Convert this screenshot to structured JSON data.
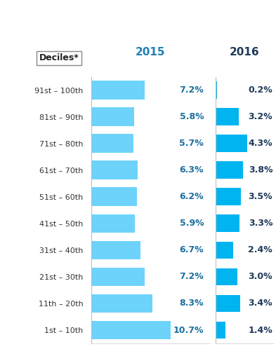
{
  "chart_data": [
    {
      "type": "bar",
      "title": "2015",
      "ylabel": "Deciles*",
      "orientation": "horizontal",
      "data_labels": true,
      "tick_labels": "y",
      "categories": [
        "91st – 100th",
        "81st – 90th",
        "71st – 80th",
        "61st – 70th",
        "51st – 60th",
        "41st – 50th",
        "31st – 40th",
        "21st – 30th",
        "11th – 20th",
        "1st – 10th"
      ],
      "values": [
        7.2,
        5.8,
        5.7,
        6.3,
        6.2,
        5.9,
        6.7,
        7.2,
        8.3,
        10.7
      ],
      "value_labels": [
        "7.2%",
        "5.8%",
        "5.7%",
        "6.3%",
        "6.2%",
        "5.9%",
        "6.7%",
        "7.2%",
        "8.3%",
        "10.7%"
      ],
      "color": "#6dd3fb",
      "xlim": [
        0,
        16
      ],
      "xticks": []
    },
    {
      "type": "bar",
      "title": "2016",
      "orientation": "horizontal",
      "data_labels": true,
      "tick_labels": false,
      "categories": [
        "91st – 100th",
        "81st – 90th",
        "71st – 80th",
        "61st – 70th",
        "51st – 60th",
        "41st – 50th",
        "31st – 40th",
        "21st – 30th",
        "11th – 20th",
        "1st – 10th"
      ],
      "values": [
        0.2,
        3.2,
        4.3,
        3.8,
        3.5,
        3.3,
        2.4,
        3.0,
        3.4,
        1.4
      ],
      "value_labels": [
        "0.2%",
        "3.2%",
        "4.3%",
        "3.8%",
        "3.5%",
        "3.3%",
        "2.4%",
        "3.0%",
        "3.4%",
        "1.4%"
      ],
      "color": "#00b4f0",
      "xlim": [
        0,
        8
      ],
      "xticks": []
    }
  ]
}
